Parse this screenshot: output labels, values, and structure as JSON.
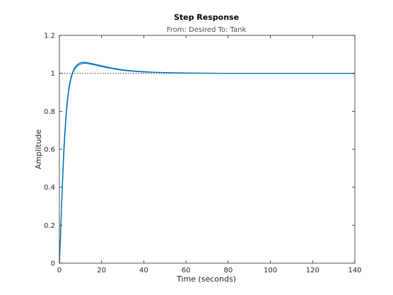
{
  "chart_data": {
    "type": "line",
    "title": "Step Response",
    "subtitle": "From: Desired  To: Tank",
    "xlabel": "Time (seconds)",
    "ylabel": "Amplitude",
    "xlim": [
      0,
      140
    ],
    "ylim": [
      0,
      1.2
    ],
    "xticks": [
      0,
      20,
      40,
      60,
      80,
      100,
      120,
      140
    ],
    "yticks": [
      0,
      0.2,
      0.4,
      0.6,
      0.8,
      1,
      1.2
    ],
    "xtick_labels": [
      "0",
      "20",
      "40",
      "60",
      "80",
      "100",
      "120",
      "140"
    ],
    "ytick_labels": [
      "0",
      "0.2",
      "0.4",
      "0.6",
      "0.8",
      "1",
      "1.2"
    ],
    "grid": false,
    "reference_line": {
      "y": 1,
      "style": "dotted",
      "color": "#000000"
    },
    "series": [
      {
        "color": "#0072bd",
        "x": [
          0,
          0.5,
          1,
          1.5,
          2,
          2.5,
          3,
          3.5,
          4,
          4.5,
          5,
          5.5,
          6,
          6.5,
          7,
          7.5,
          8,
          9,
          10,
          11,
          12,
          13,
          14,
          16,
          18,
          20,
          22,
          25,
          28,
          30,
          35,
          40,
          45,
          50,
          55,
          60,
          65,
          70,
          80,
          90,
          100,
          110,
          120,
          130,
          140
        ],
        "y": [
          0,
          0.14,
          0.3,
          0.45,
          0.58,
          0.68,
          0.76,
          0.83,
          0.88,
          0.925,
          0.955,
          0.98,
          0.998,
          1.012,
          1.025,
          1.033,
          1.04,
          1.05,
          1.056,
          1.058,
          1.058,
          1.057,
          1.055,
          1.05,
          1.045,
          1.04,
          1.035,
          1.028,
          1.022,
          1.019,
          1.013,
          1.009,
          1.006,
          1.004,
          1.003,
          1.002,
          1.001,
          1.001,
          1.0,
          1.0,
          1.0,
          1.0,
          1.0,
          1.0,
          1.0
        ]
      },
      {
        "color": "#0072bd",
        "x": [
          0,
          0.5,
          1,
          1.5,
          2,
          2.5,
          3,
          3.5,
          4,
          4.5,
          5,
          5.5,
          6,
          6.5,
          7,
          7.5,
          8,
          9,
          10,
          11,
          12,
          13,
          14,
          16,
          18,
          20,
          22,
          25,
          28,
          30,
          35,
          40,
          45,
          50,
          55,
          60,
          65,
          70,
          80,
          90,
          100,
          110,
          120,
          130,
          140
        ],
        "y": [
          0,
          0.12,
          0.27,
          0.42,
          0.55,
          0.65,
          0.74,
          0.81,
          0.865,
          0.91,
          0.945,
          0.97,
          0.99,
          1.005,
          1.017,
          1.026,
          1.033,
          1.043,
          1.049,
          1.052,
          1.053,
          1.052,
          1.05,
          1.046,
          1.041,
          1.036,
          1.031,
          1.025,
          1.019,
          1.016,
          1.011,
          1.007,
          1.005,
          1.003,
          1.002,
          1.001,
          1.001,
          1.0,
          1.0,
          1.0,
          1.0,
          1.0,
          1.0,
          1.0,
          1.0
        ]
      }
    ]
  }
}
